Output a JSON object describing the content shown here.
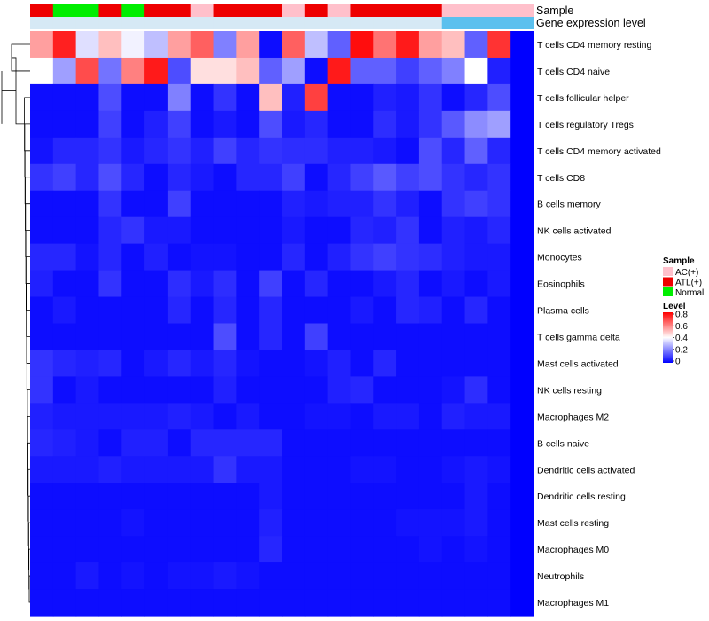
{
  "chart_data": {
    "type": "heatmap",
    "annotation_rows": [
      "Sample",
      "Gene expression level"
    ],
    "sample_groups": [
      "ATL(+)",
      "Normal",
      "Normal",
      "ATL(+)",
      "Normal",
      "ATL(+)",
      "ATL(+)",
      "AC(+)",
      "ATL(+)",
      "ATL(+)",
      "ATL(+)",
      "AC(+)",
      "ATL(+)",
      "AC(+)",
      "ATL(+)",
      "ATL(+)",
      "ATL(+)",
      "ATL(+)",
      "AC(+)",
      "AC(+)",
      "AC(+)",
      "AC(+)"
    ],
    "expression_level_values": [
      0.05,
      0.05,
      0.05,
      0.05,
      0.05,
      0.05,
      0.05,
      0.05,
      0.05,
      0.05,
      0.05,
      0.05,
      0.05,
      0.05,
      0.05,
      0.05,
      0.05,
      0.05,
      0.6,
      0.6,
      0.6,
      0.6
    ],
    "rows": [
      {
        "label": "T cells CD4 memory resting",
        "values": [
          0.55,
          0.75,
          0.35,
          0.5,
          0.38,
          0.3,
          0.55,
          0.65,
          0.2,
          0.55,
          0.02,
          0.65,
          0.3,
          0.15,
          0.78,
          0.62,
          0.76,
          0.55,
          0.5,
          0.15,
          0.72,
          0.0
        ]
      },
      {
        "label": "T cells CD4 naive",
        "values": [
          0.4,
          0.25,
          0.68,
          0.18,
          0.6,
          0.76,
          0.12,
          0.45,
          0.45,
          0.5,
          0.15,
          0.25,
          0.02,
          0.76,
          0.15,
          0.15,
          0.1,
          0.15,
          0.2,
          0.4,
          0.05,
          0.0
        ]
      },
      {
        "label": "T cells follicular helper",
        "values": [
          0.02,
          0.02,
          0.02,
          0.12,
          0.02,
          0.02,
          0.2,
          0.02,
          0.08,
          0.02,
          0.5,
          0.05,
          0.7,
          0.02,
          0.02,
          0.05,
          0.04,
          0.08,
          0.02,
          0.06,
          0.12,
          0.0
        ]
      },
      {
        "label": "T cells regulatory  Tregs",
        "values": [
          0.02,
          0.02,
          0.02,
          0.1,
          0.02,
          0.05,
          0.1,
          0.02,
          0.04,
          0.02,
          0.12,
          0.04,
          0.06,
          0.02,
          0.02,
          0.07,
          0.04,
          0.08,
          0.14,
          0.22,
          0.25,
          0.0
        ]
      },
      {
        "label": "T cells CD4 memory activated",
        "values": [
          0.03,
          0.06,
          0.06,
          0.08,
          0.04,
          0.06,
          0.08,
          0.05,
          0.1,
          0.06,
          0.08,
          0.07,
          0.07,
          0.05,
          0.05,
          0.04,
          0.02,
          0.12,
          0.06,
          0.15,
          0.06,
          0.0
        ]
      },
      {
        "label": "T cells CD8",
        "values": [
          0.08,
          0.1,
          0.06,
          0.12,
          0.06,
          0.02,
          0.06,
          0.04,
          0.02,
          0.06,
          0.06,
          0.1,
          0.02,
          0.06,
          0.1,
          0.14,
          0.1,
          0.12,
          0.08,
          0.06,
          0.08,
          0.0
        ]
      },
      {
        "label": "B cells memory",
        "values": [
          0.02,
          0.02,
          0.02,
          0.08,
          0.02,
          0.02,
          0.1,
          0.02,
          0.02,
          0.02,
          0.02,
          0.05,
          0.04,
          0.05,
          0.05,
          0.08,
          0.05,
          0.02,
          0.08,
          0.1,
          0.08,
          0.0
        ]
      },
      {
        "label": "NK cells activated",
        "values": [
          0.02,
          0.02,
          0.02,
          0.06,
          0.08,
          0.04,
          0.04,
          0.02,
          0.02,
          0.02,
          0.02,
          0.04,
          0.02,
          0.02,
          0.06,
          0.05,
          0.08,
          0.02,
          0.05,
          0.04,
          0.06,
          0.0
        ]
      },
      {
        "label": "Monocytes",
        "values": [
          0.06,
          0.06,
          0.03,
          0.06,
          0.02,
          0.05,
          0.02,
          0.03,
          0.03,
          0.02,
          0.02,
          0.06,
          0.02,
          0.05,
          0.08,
          0.1,
          0.08,
          0.07,
          0.05,
          0.04,
          0.04,
          0.0
        ]
      },
      {
        "label": "Eosinophils",
        "values": [
          0.05,
          0.02,
          0.02,
          0.08,
          0.02,
          0.02,
          0.07,
          0.04,
          0.07,
          0.02,
          0.1,
          0.02,
          0.06,
          0.02,
          0.02,
          0.04,
          0.06,
          0.02,
          0.04,
          0.02,
          0.04,
          0.0
        ]
      },
      {
        "label": "Plasma cells",
        "values": [
          0.02,
          0.04,
          0.02,
          0.02,
          0.02,
          0.02,
          0.06,
          0.02,
          0.06,
          0.02,
          0.06,
          0.02,
          0.02,
          0.02,
          0.04,
          0.02,
          0.06,
          0.05,
          0.02,
          0.06,
          0.02,
          0.0
        ]
      },
      {
        "label": "T cells gamma delta",
        "values": [
          0.02,
          0.02,
          0.02,
          0.02,
          0.02,
          0.02,
          0.02,
          0.02,
          0.12,
          0.02,
          0.06,
          0.02,
          0.1,
          0.02,
          0.02,
          0.02,
          0.02,
          0.02,
          0.02,
          0.02,
          0.02,
          0.0
        ]
      },
      {
        "label": "Mast cells activated",
        "values": [
          0.08,
          0.06,
          0.05,
          0.06,
          0.02,
          0.04,
          0.06,
          0.04,
          0.06,
          0.03,
          0.02,
          0.02,
          0.03,
          0.05,
          0.02,
          0.06,
          0.02,
          0.02,
          0.02,
          0.02,
          0.02,
          0.0
        ]
      },
      {
        "label": "NK cells resting",
        "values": [
          0.08,
          0.02,
          0.04,
          0.02,
          0.02,
          0.02,
          0.02,
          0.02,
          0.05,
          0.02,
          0.02,
          0.02,
          0.02,
          0.05,
          0.06,
          0.02,
          0.02,
          0.02,
          0.03,
          0.07,
          0.02,
          0.0
        ]
      },
      {
        "label": "Macrophages M2",
        "values": [
          0.05,
          0.04,
          0.04,
          0.04,
          0.04,
          0.04,
          0.05,
          0.04,
          0.02,
          0.04,
          0.02,
          0.02,
          0.03,
          0.03,
          0.02,
          0.04,
          0.04,
          0.02,
          0.05,
          0.04,
          0.04,
          0.0
        ]
      },
      {
        "label": "B cells naive",
        "values": [
          0.06,
          0.05,
          0.04,
          0.02,
          0.05,
          0.05,
          0.02,
          0.06,
          0.06,
          0.06,
          0.06,
          0.02,
          0.02,
          0.02,
          0.02,
          0.02,
          0.02,
          0.02,
          0.02,
          0.02,
          0.02,
          0.0
        ]
      },
      {
        "label": "Dendritic cells activated",
        "values": [
          0.04,
          0.04,
          0.04,
          0.05,
          0.04,
          0.04,
          0.04,
          0.04,
          0.08,
          0.04,
          0.04,
          0.02,
          0.02,
          0.02,
          0.03,
          0.03,
          0.02,
          0.02,
          0.03,
          0.04,
          0.03,
          0.0
        ]
      },
      {
        "label": "Dendritic cells resting",
        "values": [
          0.02,
          0.02,
          0.02,
          0.02,
          0.02,
          0.02,
          0.02,
          0.02,
          0.02,
          0.02,
          0.04,
          0.02,
          0.02,
          0.02,
          0.02,
          0.02,
          0.02,
          0.02,
          0.02,
          0.04,
          0.02,
          0.0
        ]
      },
      {
        "label": "Mast cells resting",
        "values": [
          0.02,
          0.02,
          0.02,
          0.02,
          0.03,
          0.02,
          0.02,
          0.02,
          0.02,
          0.02,
          0.05,
          0.02,
          0.02,
          0.02,
          0.02,
          0.02,
          0.03,
          0.03,
          0.03,
          0.04,
          0.02,
          0.0
        ]
      },
      {
        "label": "Macrophages M0",
        "values": [
          0.02,
          0.02,
          0.02,
          0.02,
          0.02,
          0.02,
          0.02,
          0.02,
          0.02,
          0.02,
          0.06,
          0.02,
          0.02,
          0.02,
          0.02,
          0.02,
          0.02,
          0.03,
          0.02,
          0.03,
          0.02,
          0.0
        ]
      },
      {
        "label": "Neutrophils",
        "values": [
          0.02,
          0.02,
          0.04,
          0.02,
          0.03,
          0.02,
          0.03,
          0.03,
          0.04,
          0.03,
          0.02,
          0.02,
          0.02,
          0.02,
          0.02,
          0.02,
          0.02,
          0.02,
          0.02,
          0.02,
          0.02,
          0.0
        ]
      },
      {
        "label": "Macrophages M1",
        "values": [
          0.02,
          0.02,
          0.02,
          0.02,
          0.02,
          0.02,
          0.02,
          0.02,
          0.02,
          0.02,
          0.02,
          0.02,
          0.02,
          0.02,
          0.02,
          0.02,
          0.02,
          0.02,
          0.02,
          0.02,
          0.02,
          0.0
        ]
      }
    ],
    "color_scale": {
      "min": 0,
      "mid": 0.4,
      "max": 0.8,
      "low_color": "#0000ff",
      "mid_color": "#ffffff",
      "high_color": "#ff0000"
    },
    "legend": {
      "sample_title": "Sample",
      "sample_items": [
        {
          "label": "AC(+)",
          "color": "#ffc0cb"
        },
        {
          "label": "ATL(+)",
          "color": "#ee0000"
        },
        {
          "label": "Normal",
          "color": "#00ee00"
        }
      ],
      "level_title": "Level",
      "level_ticks": [
        "0.8",
        "0.6",
        "0.4",
        "0.2",
        "0"
      ],
      "expression_colors": {
        "low": "#d6e9f5",
        "high": "#5bc0ee"
      },
      "placement": "right"
    },
    "dendrogram": "rows"
  }
}
